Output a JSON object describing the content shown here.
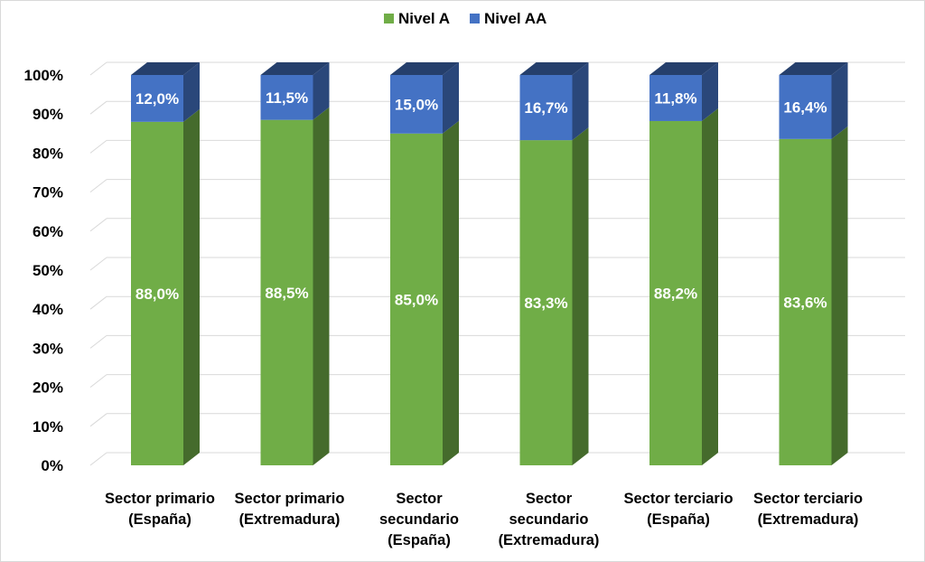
{
  "chart_data": {
    "type": "bar",
    "stacked": true,
    "title": "",
    "xlabel": "",
    "ylabel": "",
    "ylim": [
      0,
      100
    ],
    "yticks": [
      "0%",
      "10%",
      "20%",
      "30%",
      "40%",
      "50%",
      "60%",
      "70%",
      "80%",
      "90%",
      "100%"
    ],
    "grid": true,
    "legend_position": "top",
    "categories": [
      [
        "Sector primario",
        "(España)"
      ],
      [
        "Sector primario",
        "(Extremadura)"
      ],
      [
        "Sector",
        "secundario",
        "(España)"
      ],
      [
        "Sector",
        "secundario",
        "(Extremadura)"
      ],
      [
        "Sector terciario",
        "(España)"
      ],
      [
        "Sector terciario",
        "(Extremadura)"
      ]
    ],
    "series": [
      {
        "name": "Nivel A",
        "color": "#70ad47",
        "values": [
          88.0,
          88.5,
          85.0,
          83.3,
          88.2,
          83.6
        ],
        "labels": [
          "88,0%",
          "88,5%",
          "85,0%",
          "83,3%",
          "88,2%",
          "83,6%"
        ]
      },
      {
        "name": "Nivel AA",
        "color": "#4472c4",
        "values": [
          12.0,
          11.5,
          15.0,
          16.7,
          11.8,
          16.4
        ],
        "labels": [
          "12,0%",
          "11,5%",
          "15,0%",
          "16,7%",
          "11,8%",
          "16,4%"
        ]
      }
    ]
  }
}
